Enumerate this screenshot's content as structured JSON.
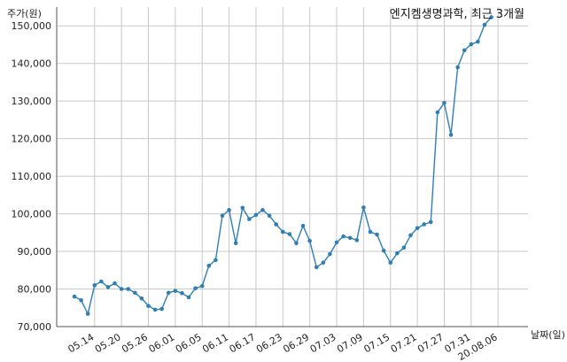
{
  "chart_data": {
    "type": "line",
    "title": "엔지켐생명과학, 최근 3개월",
    "ylabel": "주가(원)",
    "xlabel": "날짜(일)",
    "ylim": [
      70000,
      155000
    ],
    "yticks": [
      70000,
      80000,
      90000,
      100000,
      110000,
      120000,
      130000,
      140000,
      150000
    ],
    "ytick_labels": [
      "70,000",
      "80,000",
      "90,000",
      "100,000",
      "110,000",
      "120,000",
      "130,000",
      "140,000",
      "150,000"
    ],
    "xtick_labels": [
      "05.14",
      "05.20",
      "05.26",
      "06.01",
      "06.05",
      "06.11",
      "06.17",
      "06.23",
      "06.29",
      "07.03",
      "07.09",
      "07.15",
      "07.21",
      "07.27",
      "07.31",
      "20.08.06"
    ],
    "xtick_index": [
      3,
      7,
      11,
      15,
      19,
      23,
      27,
      31,
      35,
      39,
      43,
      47,
      51,
      55,
      59,
      63
    ],
    "grid": true,
    "series": [
      {
        "color": "#2f7fb5",
        "values": [
          78000,
          77000,
          73400,
          81000,
          82000,
          80500,
          81500,
          80000,
          80000,
          79000,
          77500,
          75500,
          74500,
          74700,
          79000,
          79500,
          78900,
          77800,
          80200,
          80800,
          86200,
          87700,
          99500,
          101000,
          92200,
          101600,
          98600,
          99700,
          101000,
          99500,
          97200,
          95200,
          94600,
          92200,
          96800,
          92800,
          85800,
          87000,
          89300,
          92400,
          94000,
          93600,
          93000,
          101700,
          95200,
          94500,
          90200,
          87000,
          89500,
          91000,
          94300,
          96200,
          97200,
          97800,
          127000,
          129500,
          121000,
          139000,
          143500,
          145100,
          145800,
          150300,
          152300
        ]
      }
    ]
  }
}
